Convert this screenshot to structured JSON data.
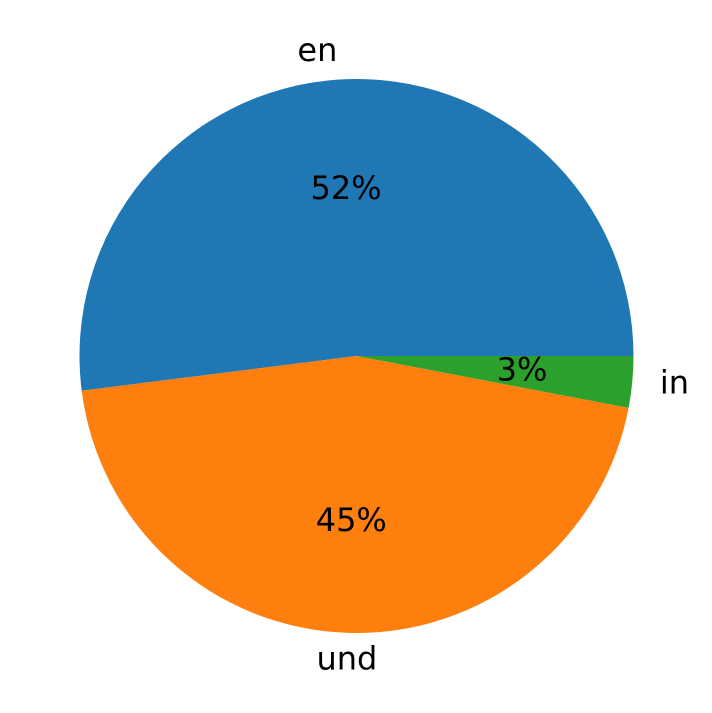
{
  "chart_data": {
    "type": "pie",
    "slices": [
      {
        "label": "en",
        "value": 52,
        "pct_label": "52%",
        "color": "#1f77b4"
      },
      {
        "label": "und",
        "value": 45,
        "pct_label": "45%",
        "color": "#ff7f0e"
      },
      {
        "label": "in",
        "value": 3,
        "pct_label": "3%",
        "color": "#2ca02c"
      }
    ],
    "start_angle_deg": 0,
    "direction": "counterclockwise",
    "legend": "none"
  }
}
